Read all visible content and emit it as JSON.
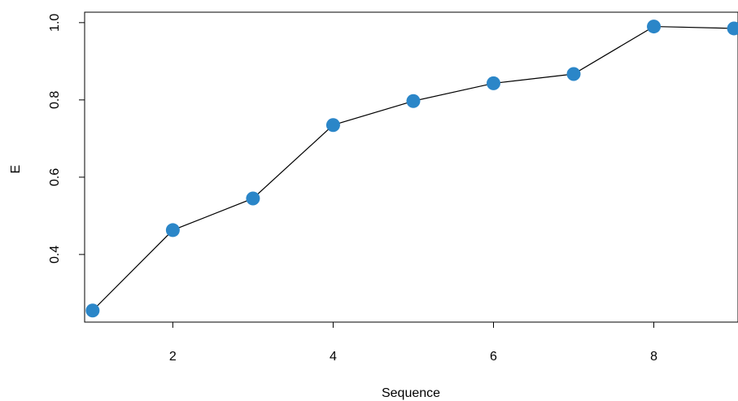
{
  "chart_data": {
    "type": "line",
    "title": "",
    "xlabel": "Sequence",
    "ylabel": "E",
    "x": [
      1,
      2,
      3,
      4,
      5,
      6,
      7,
      8,
      9
    ],
    "series": [
      {
        "values": [
          0.255,
          0.463,
          0.545,
          0.735,
          0.797,
          0.843,
          0.867,
          0.99,
          0.985
        ],
        "color": "#2b86c8",
        "line_color": "#000000",
        "marker": "filled-circle"
      }
    ],
    "xlim": [
      0.9,
      9.05
    ],
    "ylim": [
      0.225,
      1.027
    ],
    "x_ticks": [
      2,
      4,
      6,
      8
    ],
    "x_tick_labels": [
      "2",
      "4",
      "6",
      "8"
    ],
    "y_ticks": [
      0.4,
      0.6,
      0.8,
      1.0
    ],
    "y_tick_labels": [
      "0.4",
      "0.6",
      "0.8",
      "1.0"
    ],
    "grid": false,
    "legend": "none"
  }
}
